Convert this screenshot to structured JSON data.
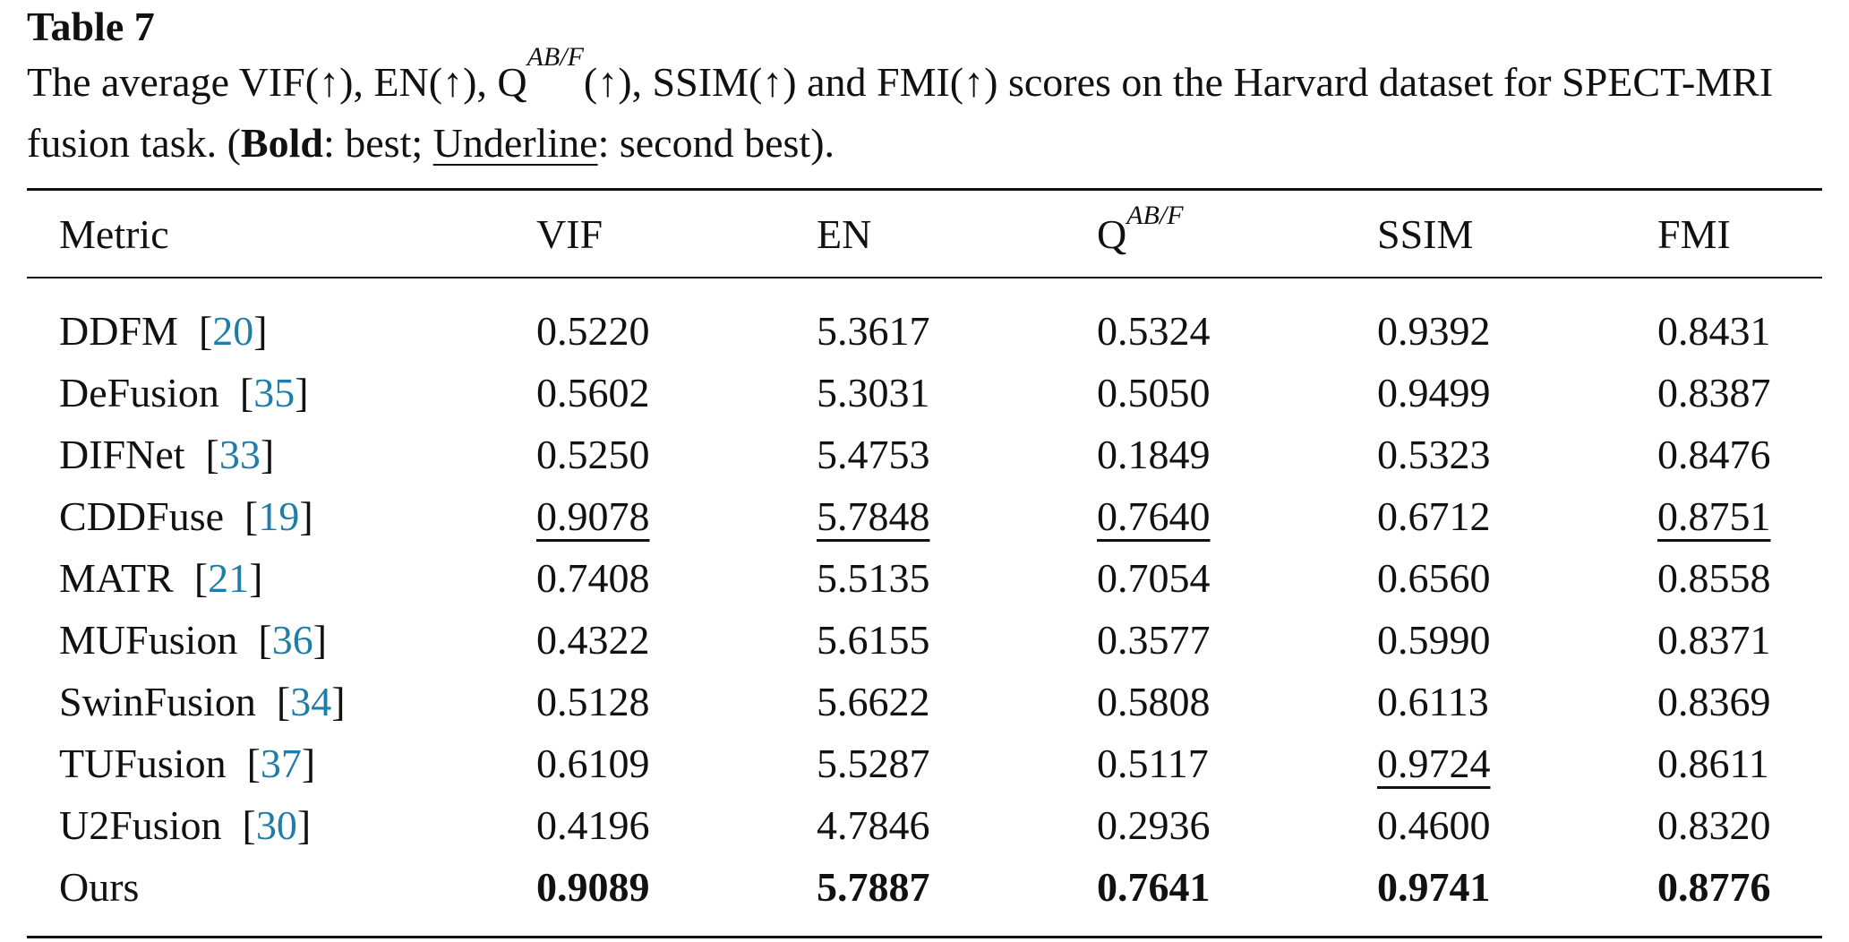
{
  "table_label": "Table 7",
  "caption": {
    "part1": "The average VIF(↑), EN(↑), Q",
    "sup": "AB/F",
    "part2": "(↑), SSIM(↑) and FMI(↑) scores on the Harvard dataset for SPECT-MRI fusion task. (",
    "bold_word": "Bold",
    "part3": ": best; ",
    "underline_word": "Underline",
    "part4": ": second best)."
  },
  "headers": {
    "metric": "Metric",
    "vif": "VIF",
    "en": "EN",
    "q_base": "Q",
    "q_sup": "AB/F",
    "ssim": "SSIM",
    "fmi": "FMI"
  },
  "rows": [
    {
      "name": "DDFM",
      "ref": "20",
      "vif": "0.5220",
      "en": "5.3617",
      "q": "0.5324",
      "ssim": "0.9392",
      "fmi": "0.8431"
    },
    {
      "name": "DeFusion",
      "ref": "35",
      "vif": "0.5602",
      "en": "5.3031",
      "q": "0.5050",
      "ssim": "0.9499",
      "fmi": "0.8387"
    },
    {
      "name": "DIFNet",
      "ref": "33",
      "vif": "0.5250",
      "en": "5.4753",
      "q": "0.1849",
      "ssim": "0.5323",
      "fmi": "0.8476"
    },
    {
      "name": "CDDFuse",
      "ref": "19",
      "vif": "0.9078",
      "en": "5.7848",
      "q": "0.7640",
      "ssim": "0.6712",
      "fmi": "0.8751"
    },
    {
      "name": "MATR",
      "ref": "21",
      "vif": "0.7408",
      "en": "5.5135",
      "q": "0.7054",
      "ssim": "0.6560",
      "fmi": "0.8558"
    },
    {
      "name": "MUFusion",
      "ref": "36",
      "vif": "0.4322",
      "en": "5.6155",
      "q": "0.3577",
      "ssim": "0.5990",
      "fmi": "0.8371"
    },
    {
      "name": "SwinFusion",
      "ref": "34",
      "vif": "0.5128",
      "en": "5.6622",
      "q": "0.5808",
      "ssim": "0.6113",
      "fmi": "0.8369"
    },
    {
      "name": "TUFusion",
      "ref": "37",
      "vif": "0.6109",
      "en": "5.5287",
      "q": "0.5117",
      "ssim": "0.9724",
      "fmi": "0.8611"
    },
    {
      "name": "U2Fusion",
      "ref": "30",
      "vif": "0.4196",
      "en": "4.7846",
      "q": "0.2936",
      "ssim": "0.4600",
      "fmi": "0.8320"
    },
    {
      "name": "Ours",
      "ref": "",
      "vif": "0.9089",
      "en": "5.7887",
      "q": "0.7641",
      "ssim": "0.9741",
      "fmi": "0.8776"
    }
  ],
  "best_row_index": 9,
  "second_best": {
    "vif": 3,
    "en": 3,
    "q": 3,
    "ssim": 7,
    "fmi": 3
  },
  "ref_color": "#1f7ea8"
}
